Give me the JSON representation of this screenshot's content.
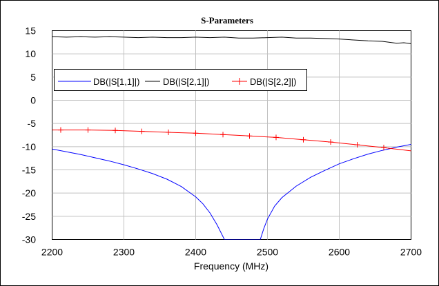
{
  "chart_data": {
    "type": "line",
    "title": "S-Parameters",
    "xlabel": "Frequency (MHz)",
    "ylabel": "",
    "xlim": [
      2200,
      2700
    ],
    "ylim": [
      -30,
      15
    ],
    "xticks": [
      2200,
      2300,
      2400,
      2500,
      2600,
      2700
    ],
    "yticks": [
      15,
      10,
      5,
      0,
      -5,
      -10,
      -15,
      -20,
      -25,
      -30
    ],
    "grid": true,
    "legend_position": "left, middle",
    "series": [
      {
        "name": "DB(|S[1,1]|)",
        "color": "#0000ff",
        "marker": "none",
        "x": [
          2200,
          2220,
          2240,
          2260,
          2280,
          2300,
          2320,
          2340,
          2360,
          2380,
          2400,
          2410,
          2420,
          2430,
          2440,
          2490,
          2495,
          2500,
          2510,
          2520,
          2540,
          2560,
          2580,
          2600,
          2620,
          2640,
          2660,
          2680,
          2700
        ],
        "y": [
          -10.5,
          -11.1,
          -11.7,
          -12.4,
          -13.1,
          -13.9,
          -14.8,
          -15.8,
          -17.0,
          -18.6,
          -20.8,
          -22.3,
          -24.3,
          -26.9,
          -30.0,
          -30.0,
          -27.6,
          -25.6,
          -22.8,
          -21.0,
          -18.5,
          -16.6,
          -15.1,
          -13.7,
          -12.6,
          -11.6,
          -10.8,
          -10.1,
          -9.5
        ]
      },
      {
        "name": "DB(|S[2,1]|)",
        "color": "#000000",
        "marker": "none",
        "x": [
          2200,
          2220,
          2240,
          2260,
          2280,
          2300,
          2320,
          2340,
          2360,
          2380,
          2400,
          2420,
          2440,
          2460,
          2480,
          2500,
          2520,
          2540,
          2560,
          2580,
          2600,
          2620,
          2640,
          2660,
          2680,
          2690,
          2700
        ],
        "y": [
          13.7,
          13.6,
          13.7,
          13.6,
          13.7,
          13.6,
          13.5,
          13.6,
          13.5,
          13.5,
          13.6,
          13.5,
          13.6,
          13.4,
          13.4,
          13.5,
          13.6,
          13.4,
          13.4,
          13.3,
          13.2,
          13.0,
          12.8,
          12.7,
          12.3,
          12.4,
          12.2
        ]
      },
      {
        "name": "DB(|S[2,2]|)",
        "color": "#ff0000",
        "marker": "+",
        "x": [
          2200,
          2212,
          2250,
          2288,
          2325,
          2362,
          2400,
          2438,
          2475,
          2512,
          2550,
          2588,
          2625,
          2662,
          2700
        ],
        "y": [
          -6.4,
          -6.4,
          -6.4,
          -6.5,
          -6.7,
          -6.9,
          -7.1,
          -7.4,
          -7.7,
          -8.0,
          -8.5,
          -9.0,
          -9.6,
          -10.2,
          -10.9
        ]
      }
    ]
  }
}
